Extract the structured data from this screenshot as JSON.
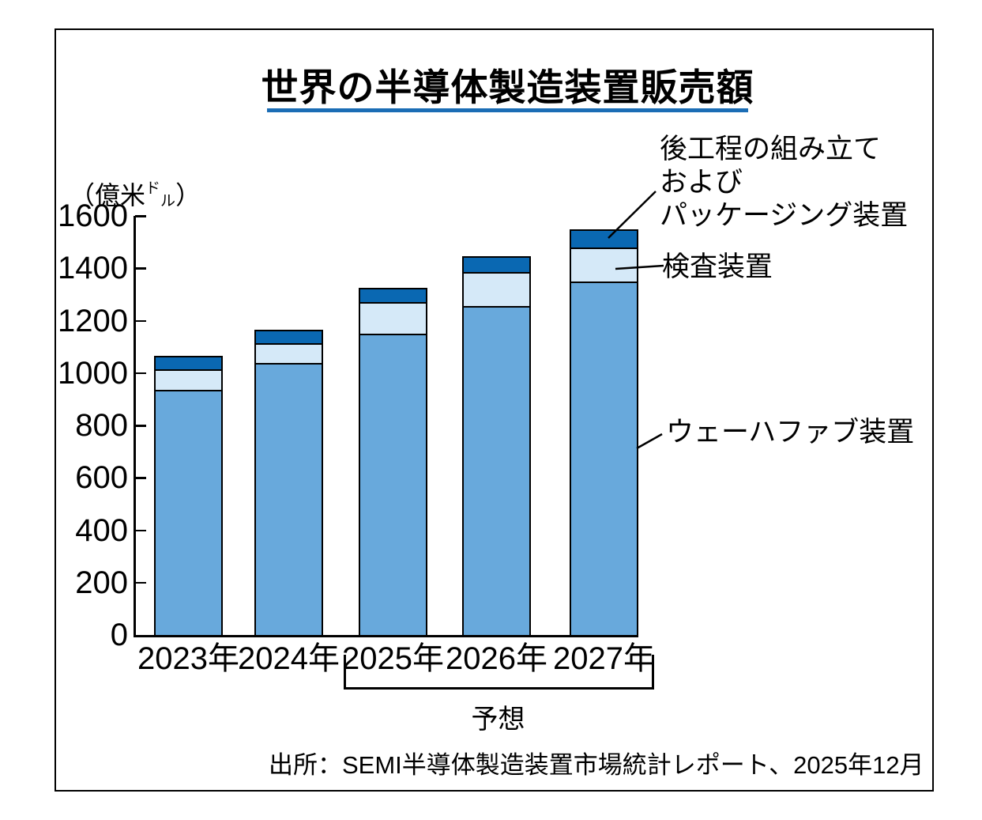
{
  "title": "世界の半導体製造装置販売額",
  "unit": {
    "open": "（",
    "main": "億米",
    "small_hi": "ド",
    "small_lo": "ル",
    "close": "）"
  },
  "legend": {
    "packaging_line1": "後工程の組み立て",
    "packaging_line2": "および",
    "packaging_line3": "パッケージング装置",
    "inspection": "検査装置",
    "wafer_fab": "ウェーハファブ装置"
  },
  "forecast_label": "予想",
  "source": "出所：SEMI半導体製造装置市場統計レポート、2025年12月",
  "colors": {
    "wafer_fab": "#68a9dc",
    "inspection": "#d5e9f8",
    "packaging": "#0a68b2",
    "title_underline": "#1b6db5",
    "outline": "#000000"
  },
  "chart_data": {
    "type": "bar",
    "stacked": true,
    "title": "世界の半導体製造装置販売額",
    "ylabel": "（億米ドル）",
    "ylim": [
      0,
      1600
    ],
    "ytick_interval": 200,
    "grid": false,
    "legend_position": "right-annotations",
    "categories": [
      "2023年",
      "2024年",
      "2025年",
      "2026年",
      "2027年"
    ],
    "series": [
      {
        "name": "ウェーハファブ装置",
        "color": "#68a9dc",
        "values": [
          935,
          1040,
          1150,
          1255,
          1350
        ]
      },
      {
        "name": "検査装置",
        "color": "#d5e9f8",
        "values": [
          80,
          75,
          120,
          130,
          130
        ]
      },
      {
        "name": "後工程の組み立ておよびパッケージング装置",
        "color": "#0a68b2",
        "values": [
          50,
          50,
          55,
          60,
          70
        ]
      }
    ],
    "totals": [
      1065,
      1165,
      1325,
      1445,
      1550
    ],
    "forecast_years": [
      "2025年",
      "2026年",
      "2027年"
    ],
    "forecast_label": "予想"
  }
}
